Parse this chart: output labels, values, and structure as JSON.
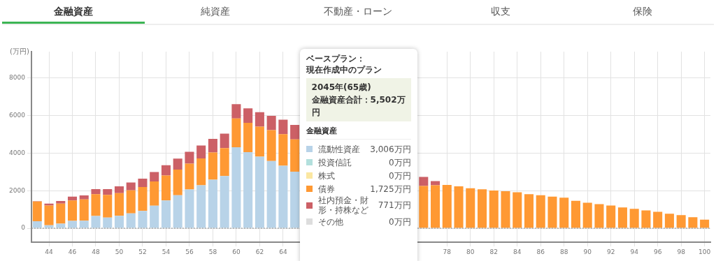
{
  "chart_data": {
    "type": "bar",
    "stacked": true,
    "grid": true,
    "ylabel": "(万円)",
    "legend": "center",
    "annotations": [
      "金融資産",
      "純資産",
      "不動産・ローン",
      "収支",
      "保険",
      "ベースプラン：",
      "現在作成中のプラン",
      "2045年(65歳)",
      "金融資産合計：5,502万円",
      "金融資産",
      "3,006万円",
      "0万円",
      "0万円",
      "1,725万円",
      "771万円",
      "0万円"
    ],
    "categories": [
      null,
      "44",
      null,
      "46",
      null,
      "48",
      null,
      "50",
      null,
      "52",
      null,
      "54",
      null,
      "56",
      null,
      "58",
      null,
      "60",
      null,
      "62",
      null,
      "64",
      null,
      null,
      null,
      null,
      null,
      null,
      null,
      null,
      null,
      null,
      null,
      null,
      null,
      "78",
      null,
      "80",
      null,
      "82",
      null,
      "84",
      null,
      "86",
      null,
      "88",
      null,
      "90",
      null,
      "92",
      null,
      "94",
      null,
      "96",
      null,
      "98",
      null,
      "100"
    ],
    "ylim": [
      -750,
      9400
    ],
    "yticks": [
      0,
      2000,
      4000,
      6000,
      8000
    ],
    "ref_lines": [
      {
        "axis": "y",
        "value": 0,
        "line_style": "dotted",
        "color": "#888888"
      }
    ],
    "series": [
      {
        "name": "流動性資産",
        "color": "#b8d3e8",
        "values": [
          370,
          160,
          240,
          390,
          400,
          650,
          570,
          660,
          790,
          920,
          1200,
          1480,
          1760,
          2060,
          2290,
          2580,
          2780,
          4310,
          4050,
          3810,
          3580,
          3330,
          3006,
          null,
          null,
          null,
          null,
          null,
          null,
          null,
          null,
          null,
          null,
          0,
          0,
          0,
          0,
          0,
          0,
          0,
          0,
          0,
          0,
          0,
          0,
          0,
          0,
          0,
          0,
          0,
          0,
          0,
          0,
          0,
          0,
          0,
          0,
          0
        ]
      },
      {
        "name": "投資信託",
        "color": "#b3e0dd",
        "values": [
          0,
          0,
          0,
          0,
          0,
          0,
          0,
          0,
          0,
          0,
          0,
          0,
          0,
          0,
          0,
          0,
          0,
          0,
          0,
          0,
          0,
          0,
          0,
          null,
          null,
          null,
          null,
          null,
          null,
          null,
          null,
          null,
          null,
          0,
          0,
          0,
          0,
          0,
          0,
          0,
          0,
          0,
          0,
          0,
          0,
          0,
          0,
          0,
          0,
          0,
          0,
          0,
          0,
          0,
          0,
          0,
          0,
          0
        ]
      },
      {
        "name": "株式",
        "color": "#fbe7a1",
        "values": [
          0,
          0,
          0,
          0,
          0,
          0,
          0,
          0,
          0,
          0,
          0,
          0,
          0,
          0,
          0,
          0,
          0,
          0,
          0,
          0,
          0,
          0,
          0,
          null,
          null,
          null,
          null,
          null,
          null,
          null,
          null,
          null,
          null,
          0,
          0,
          0,
          0,
          0,
          0,
          0,
          0,
          0,
          0,
          0,
          0,
          0,
          0,
          0,
          0,
          0,
          0,
          0,
          0,
          0,
          0,
          0,
          0,
          0
        ]
      },
      {
        "name": "債券",
        "color": "#ff9933",
        "values": [
          1050,
          1050,
          1070,
          1090,
          1130,
          1160,
          1200,
          1210,
          1230,
          1270,
          1290,
          1330,
          1360,
          1380,
          1430,
          1450,
          1480,
          1530,
          1560,
          1600,
          1640,
          1680,
          1725,
          null,
          null,
          null,
          null,
          null,
          null,
          null,
          null,
          null,
          null,
          2250,
          2290,
          2300,
          2230,
          2130,
          2070,
          2010,
          1970,
          1910,
          1810,
          1760,
          1680,
          1630,
          1460,
          1360,
          1280,
          1210,
          1110,
          1030,
          950,
          870,
          770,
          700,
          590,
          460
        ]
      },
      {
        "name": "社内預金・財形・持株など",
        "color": "#cc6066",
        "values": [
          20,
          100,
          140,
          200,
          220,
          270,
          310,
          360,
          410,
          450,
          500,
          540,
          590,
          630,
          680,
          730,
          770,
          760,
          770,
          770,
          760,
          770,
          771,
          null,
          null,
          null,
          null,
          null,
          null,
          null,
          null,
          null,
          null,
          480,
          220,
          0,
          0,
          0,
          0,
          0,
          0,
          0,
          0,
          0,
          0,
          0,
          0,
          0,
          0,
          0,
          0,
          0,
          0,
          0,
          0,
          0,
          0,
          0
        ]
      },
      {
        "name": "その他",
        "color": "#dddddd",
        "values": [
          0,
          0,
          0,
          0,
          0,
          0,
          0,
          0,
          0,
          0,
          0,
          0,
          0,
          0,
          0,
          0,
          0,
          0,
          0,
          0,
          0,
          0,
          0,
          null,
          null,
          null,
          null,
          null,
          null,
          null,
          null,
          null,
          null,
          0,
          0,
          0,
          0,
          0,
          0,
          0,
          0,
          0,
          0,
          0,
          0,
          0,
          0,
          0,
          0,
          0,
          0,
          0,
          0,
          0,
          0,
          0,
          0,
          0
        ]
      }
    ]
  }
}
